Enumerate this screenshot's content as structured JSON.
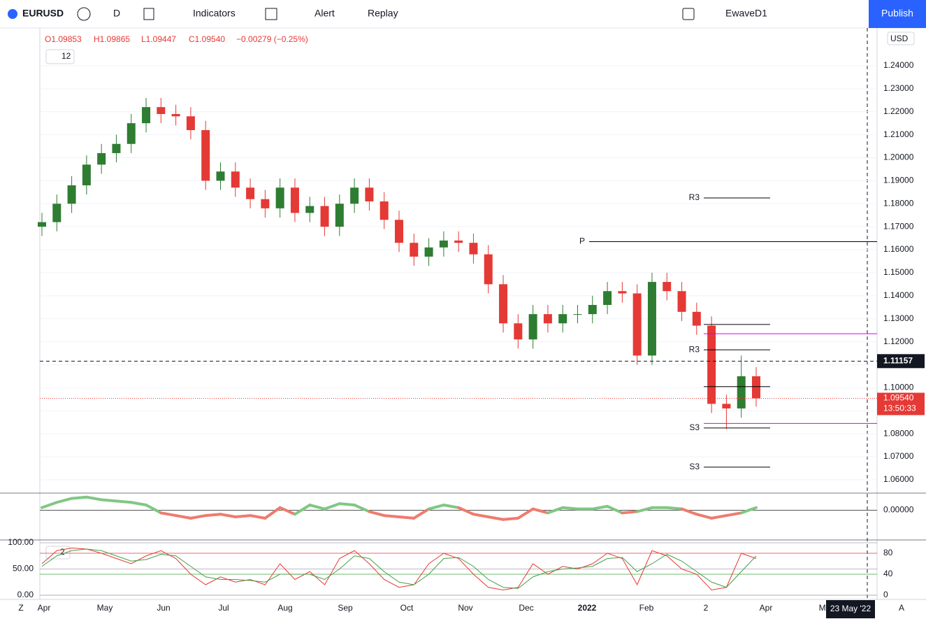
{
  "toolbar": {
    "symbol": "EURUSD",
    "interval": "D",
    "indicators": "Indicators",
    "alert": "Alert",
    "replay": "Replay",
    "layout": "EwaveD1",
    "publish": "Publish",
    "currency": "USD"
  },
  "legend": {
    "open": "O1.09853",
    "high": "H1.09865",
    "low": "L1.09447",
    "close": "C1.09540",
    "change": "−0.00279 (−0.25%)",
    "count": "12"
  },
  "chart_data": [
    {
      "type": "candlestick",
      "up_color": "#2e7d32",
      "down_color": "#e53935",
      "open": [
        1.17,
        1.172,
        1.18,
        1.188,
        1.197,
        1.202,
        1.206,
        1.215,
        1.222,
        1.219,
        1.218,
        1.212,
        1.19,
        1.194,
        1.187,
        1.182,
        1.178,
        1.187,
        1.176,
        1.179,
        1.17,
        1.18,
        1.187,
        1.181,
        1.173,
        1.163,
        1.157,
        1.161,
        1.164,
        1.163,
        1.158,
        1.145,
        1.128,
        1.121,
        1.132,
        1.128,
        1.132,
        1.132,
        1.136,
        1.142,
        1.141,
        1.114,
        1.146,
        1.142,
        1.133,
        1.127,
        1.093,
        1.091,
        1.105
      ],
      "high": [
        1.176,
        1.184,
        1.192,
        1.201,
        1.206,
        1.21,
        1.219,
        1.226,
        1.226,
        1.223,
        1.222,
        1.216,
        1.198,
        1.198,
        1.191,
        1.186,
        1.191,
        1.191,
        1.183,
        1.183,
        1.184,
        1.191,
        1.191,
        1.185,
        1.177,
        1.167,
        1.165,
        1.168,
        1.168,
        1.167,
        1.162,
        1.149,
        1.132,
        1.136,
        1.136,
        1.136,
        1.136,
        1.14,
        1.146,
        1.146,
        1.145,
        1.15,
        1.15,
        1.146,
        1.137,
        1.131,
        1.097,
        1.114,
        1.109
      ],
      "low": [
        1.166,
        1.168,
        1.176,
        1.184,
        1.193,
        1.198,
        1.202,
        1.211,
        1.215,
        1.214,
        1.208,
        1.186,
        1.186,
        1.183,
        1.178,
        1.174,
        1.174,
        1.172,
        1.172,
        1.166,
        1.166,
        1.176,
        1.177,
        1.169,
        1.159,
        1.153,
        1.153,
        1.157,
        1.159,
        1.154,
        1.141,
        1.124,
        1.117,
        1.117,
        1.124,
        1.124,
        1.128,
        1.128,
        1.132,
        1.137,
        1.11,
        1.11,
        1.138,
        1.129,
        1.123,
        1.089,
        1.082,
        1.087,
        1.0918
      ],
      "close": [
        1.172,
        1.18,
        1.188,
        1.197,
        1.202,
        1.206,
        1.215,
        1.222,
        1.219,
        1.218,
        1.212,
        1.19,
        1.194,
        1.187,
        1.182,
        1.178,
        1.187,
        1.176,
        1.179,
        1.17,
        1.18,
        1.187,
        1.181,
        1.173,
        1.163,
        1.157,
        1.161,
        1.164,
        1.163,
        1.158,
        1.145,
        1.128,
        1.121,
        1.132,
        1.128,
        1.132,
        1.132,
        1.136,
        1.142,
        1.141,
        1.114,
        1.146,
        1.142,
        1.133,
        1.127,
        1.093,
        1.091,
        1.105,
        1.0954
      ],
      "ylim": [
        1.0542,
        1.2564
      ],
      "yticks": [
        {
          "value": 1.06,
          "label": "1.06000"
        },
        {
          "value": 1.07,
          "label": "1.07000"
        },
        {
          "value": 1.08,
          "label": "1.08000"
        },
        {
          "value": 1.09,
          "label": "1.09000"
        },
        {
          "value": 1.1,
          "label": "1.10000"
        },
        {
          "value": 1.11,
          "label": "1.11000"
        },
        {
          "value": 1.12,
          "label": "1.12000"
        },
        {
          "value": 1.13,
          "label": "1.13000"
        },
        {
          "value": 1.14,
          "label": "1.14000"
        },
        {
          "value": 1.15,
          "label": "1.15000"
        },
        {
          "value": 1.16,
          "label": "1.16000"
        },
        {
          "value": 1.17,
          "label": "1.17000"
        },
        {
          "value": 1.18,
          "label": "1.18000"
        },
        {
          "value": 1.19,
          "label": "1.19000"
        },
        {
          "value": 1.2,
          "label": "1.20000"
        },
        {
          "value": 1.21,
          "label": "1.21000"
        },
        {
          "value": 1.22,
          "label": "1.22000"
        },
        {
          "value": 1.23,
          "label": "1.23000"
        },
        {
          "value": 1.24,
          "label": "1.24000"
        }
      ],
      "levels": [
        {
          "name": "R3",
          "value": 1.1825,
          "color": "#000000"
        },
        {
          "name": "P",
          "value": 1.1635,
          "color": "#000000"
        },
        {
          "value": 1.1275,
          "color": "#000000"
        },
        {
          "value": 1.1235,
          "color": "#d500f9"
        },
        {
          "name": "R3",
          "value": 1.1165,
          "color": "#000000"
        },
        {
          "value": 1.1005,
          "color": "#000000"
        },
        {
          "value": 1.0845,
          "color": "#d500f9"
        },
        {
          "name": "S3",
          "value": 1.0825,
          "color": "#000000"
        },
        {
          "name": "S3",
          "value": 1.0655,
          "color": "#000000"
        }
      ],
      "last_price": {
        "value": 1.0954,
        "label": "1.09540",
        "countdown": "13:50:33"
      },
      "crosshair": {
        "value": 1.11157,
        "label": "1.11157"
      }
    },
    {
      "type": "line",
      "values": [
        0.002,
        0.006,
        0.009,
        0.01,
        0.008,
        0.007,
        0.006,
        0.004,
        -0.002,
        -0.004,
        -0.006,
        -0.004,
        -0.003,
        -0.005,
        -0.004,
        -0.006,
        0.002,
        -0.003,
        0.004,
        0.001,
        0.005,
        0.004,
        -0.001,
        -0.004,
        -0.005,
        -0.006,
        0.001,
        0.004,
        0.002,
        -0.003,
        -0.005,
        -0.007,
        -0.006,
        0.001,
        -0.002,
        0.002,
        0.001,
        0.001,
        0.003,
        -0.002,
        -0.001,
        0.002,
        0.002,
        0.001,
        -0.003,
        -0.006,
        -0.004,
        -0.002,
        0.002
      ],
      "up_color": "#81c784",
      "down_color": "#ef7b6e",
      "ylim": [
        -0.022,
        0.0125
      ],
      "yticks": [
        {
          "value": 0,
          "label": "0.00000"
        }
      ]
    },
    {
      "type": "line",
      "count": "2",
      "series": [
        {
          "color": "#e53935",
          "values": [
            60,
            85,
            90,
            88,
            80,
            70,
            60,
            75,
            85,
            70,
            40,
            20,
            35,
            25,
            30,
            20,
            60,
            30,
            45,
            20,
            70,
            85,
            60,
            30,
            15,
            20,
            60,
            80,
            70,
            40,
            15,
            10,
            15,
            60,
            40,
            55,
            50,
            60,
            80,
            70,
            20,
            85,
            75,
            50,
            40,
            10,
            15,
            80,
            70
          ]
        },
        {
          "color": "#43a047",
          "values": [
            55,
            75,
            85,
            88,
            85,
            75,
            65,
            68,
            78,
            75,
            55,
            35,
            30,
            30,
            28,
            25,
            40,
            40,
            40,
            30,
            50,
            75,
            70,
            45,
            25,
            20,
            40,
            70,
            72,
            55,
            30,
            15,
            13,
            35,
            45,
            50,
            52,
            55,
            70,
            72,
            45,
            60,
            78,
            65,
            45,
            25,
            15,
            45,
            75
          ]
        }
      ],
      "ylim": [
        0,
        100
      ],
      "yticks": [
        0,
        40,
        80
      ],
      "y2ticks": [
        {
          "value": 0,
          "label": "0.00"
        },
        {
          "value": 50,
          "label": "50.00"
        },
        {
          "value": 100,
          "label": "100.00"
        }
      ]
    }
  ],
  "time_axis": {
    "labels": [
      "Apr",
      "May",
      "Jun",
      "Jul",
      "Aug",
      "Sep",
      "Oct",
      "Nov",
      "Dec",
      "2022",
      "Feb",
      "2",
      "Apr",
      "Ma"
    ],
    "crosshair": "23 May '22",
    "left": "Z",
    "right": "A"
  }
}
